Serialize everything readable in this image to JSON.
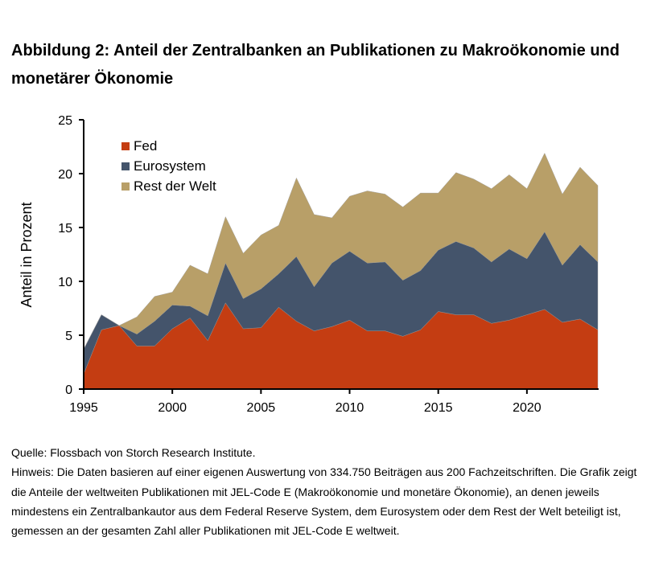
{
  "title": "Abbildung 2: Anteil der Zentralbanken an Publikationen zu Makroökonomie und monetärer Ökonomie",
  "source": "Quelle: Flossbach von Storch Research Institute.",
  "note": "Hinweis: Die Daten basieren auf einer eigenen Auswertung von 334.750 Beiträgen aus 200 Fachzeitschriften. Die Grafik zeigt die Anteile der weltweiten Publikationen mit JEL-Code E (Makroökonomie und monetäre Ökonomie), an denen jeweils mindestens ein Zentralbankautor aus dem Federal Reserve System, dem Eurosystem oder dem Rest der Welt beteiligt ist, gemessen an der gesamten Zahl aller Publikationen mit JEL-Code E weltweit.",
  "chart_data": {
    "type": "area",
    "stacked": true,
    "ylabel": "Anteil in Prozent",
    "xlabel": "",
    "ylim": [
      0,
      25
    ],
    "xlim": [
      1995,
      2024
    ],
    "yticks": [
      "0",
      "5",
      "10",
      "15",
      "20",
      "25"
    ],
    "xticks": [
      "1995",
      "2000",
      "2005",
      "2010",
      "2015",
      "2020"
    ],
    "grid": false,
    "legend_position": "top-left",
    "x": [
      1995,
      1996,
      1997,
      1998,
      1999,
      2000,
      2001,
      2002,
      2003,
      2004,
      2005,
      2006,
      2007,
      2008,
      2009,
      2010,
      2011,
      2012,
      2013,
      2014,
      2015,
      2016,
      2017,
      2018,
      2019,
      2020,
      2021,
      2022,
      2023,
      2024
    ],
    "series": [
      {
        "name": "Fed",
        "color": "#C43D12",
        "values": [
          1.4,
          5.5,
          5.9,
          4.0,
          4.0,
          5.6,
          6.6,
          4.5,
          8.0,
          5.6,
          5.7,
          7.6,
          6.3,
          5.4,
          5.8,
          6.4,
          5.4,
          5.4,
          4.9,
          5.5,
          7.2,
          6.9,
          6.9,
          6.1,
          6.4,
          6.9,
          7.4,
          6.2,
          6.5,
          5.5
        ]
      },
      {
        "name": "Eurosystem",
        "color": "#44546B",
        "values": [
          2.3,
          1.4,
          0,
          1.1,
          2.3,
          2.2,
          1.1,
          2.3,
          3.7,
          2.8,
          3.6,
          3.1,
          6.0,
          4.1,
          5.9,
          6.4,
          6.3,
          6.4,
          5.2,
          5.5,
          5.7,
          6.8,
          6.2,
          5.7,
          6.6,
          5.2,
          7.2,
          5.3,
          6.9,
          6.3
        ]
      },
      {
        "name": "Rest der Welt",
        "color": "#B89F68",
        "values": [
          0,
          0,
          0,
          1.6,
          2.3,
          1.2,
          3.8,
          3.9,
          4.3,
          4.2,
          5.0,
          4.5,
          7.3,
          6.7,
          4.2,
          5.1,
          6.7,
          6.3,
          6.8,
          7.2,
          5.3,
          6.4,
          6.4,
          6.8,
          6.9,
          6.5,
          7.3,
          6.6,
          7.2,
          7.1
        ]
      }
    ]
  }
}
